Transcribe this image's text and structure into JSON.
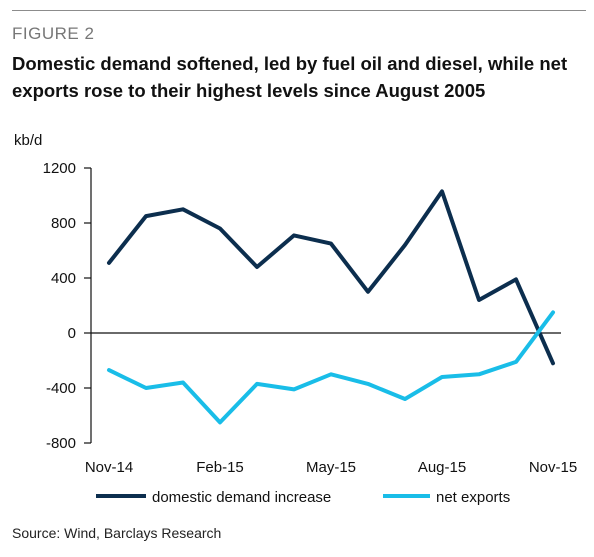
{
  "figure_label": "FIGURE 2",
  "title": "Domestic demand softened, led by fuel oil and diesel, while net exports rose to their highest levels since August 2005",
  "source": "Source: Wind, Barclays Research",
  "colors": {
    "domestic": "#0c2e4e",
    "net_exports": "#19bde8",
    "axis": "#111111"
  },
  "chart_data": {
    "type": "line",
    "title": "Domestic demand softened, led by fuel oil and diesel, while net exports rose to their highest levels since August 2005",
    "unit_label": "kb/d",
    "x": [
      "Nov-14",
      "Dec-14",
      "Jan-15",
      "Feb-15",
      "Mar-15",
      "Apr-15",
      "May-15",
      "Jun-15",
      "Jul-15",
      "Aug-15",
      "Sep-15",
      "Oct-15",
      "Nov-15"
    ],
    "x_tick_labels": [
      "Nov-14",
      "Feb-15",
      "May-15",
      "Aug-15",
      "Nov-15"
    ],
    "ylim": [
      -800,
      1200
    ],
    "y_ticks": [
      1200,
      800,
      400,
      0,
      -400,
      -800
    ],
    "grid": false,
    "legend_position": "bottom",
    "series": [
      {
        "name": "domestic demand increase",
        "values": [
          510,
          850,
          900,
          760,
          480,
          710,
          650,
          300,
          640,
          1030,
          240,
          390,
          -220
        ]
      },
      {
        "name": "net exports",
        "values": [
          -270,
          -400,
          -360,
          -650,
          -370,
          -410,
          -300,
          -370,
          -480,
          -320,
          -300,
          -210,
          150
        ]
      }
    ]
  }
}
